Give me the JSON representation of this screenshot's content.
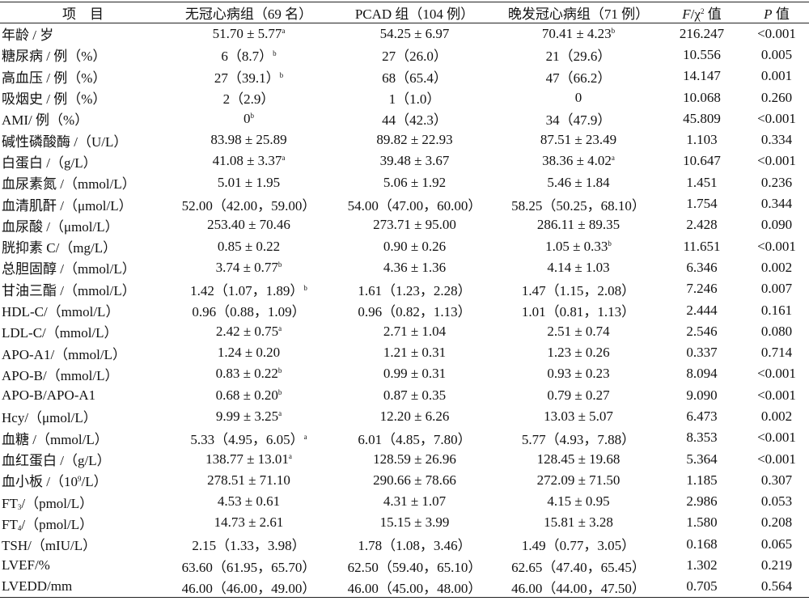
{
  "table": {
    "header": [
      "项　目",
      "无冠心病组（69 名）",
      "PCAD 组（104 例）",
      "晚发冠心病组（71 例）",
      [
        {
          "i": "F"
        },
        "/χ",
        {
          "sup": "2"
        },
        " 值"
      ],
      [
        {
          "i": "P"
        },
        " 值"
      ]
    ],
    "rows": [
      [
        "年龄 / 岁",
        [
          "51.70 ± 5.77",
          {
            "sup": "a"
          }
        ],
        "54.25 ± 6.97",
        [
          "70.41 ± 4.23",
          {
            "sup": "b"
          }
        ],
        "216.247",
        "<0.001"
      ],
      [
        "糖尿病 / 例（%）",
        [
          "6（8.7）",
          {
            "sup": "b"
          }
        ],
        "27（26.0）",
        "21（29.6）",
        "10.556",
        "0.005"
      ],
      [
        "高血压 / 例（%）",
        [
          "27（39.1）",
          {
            "sup": "b"
          }
        ],
        "68（65.4）",
        "47（66.2）",
        "14.147",
        "0.001"
      ],
      [
        "吸烟史 / 例（%）",
        "2（2.9）",
        "1（1.0）",
        "0",
        "10.068",
        "0.260"
      ],
      [
        "AMI/ 例（%）",
        [
          "0",
          {
            "sup": "b"
          }
        ],
        "44（42.3）",
        "34（47.9）",
        "45.809",
        "<0.001"
      ],
      [
        "碱性磷酸酶 /（U/L）",
        "83.98 ± 25.89",
        "89.82 ± 22.93",
        "87.51 ± 23.49",
        "1.103",
        "0.334"
      ],
      [
        "白蛋白 /（g/L）",
        [
          "41.08 ± 3.37",
          {
            "sup": "a"
          }
        ],
        "39.48 ± 3.67",
        [
          "38.36 ± 4.02",
          {
            "sup": "a"
          }
        ],
        "10.647",
        "<0.001"
      ],
      [
        "血尿素氮 /（mmol/L）",
        "5.01 ± 1.95",
        "5.06 ± 1.92",
        "5.46 ± 1.84",
        "1.451",
        "0.236"
      ],
      [
        "血清肌酐 /（μmol/L）",
        "52.00（42.00，59.00）",
        "54.00（47.00，60.00）",
        "58.25（50.25，68.10）",
        "1.754",
        "0.344"
      ],
      [
        "血尿酸 /（μmol/L）",
        "253.40 ± 70.46",
        "273.71 ± 95.00",
        "286.11 ± 89.35",
        "2.428",
        "0.090"
      ],
      [
        "胱抑素 C/（mg/L）",
        "0.85 ± 0.22",
        "0.90 ± 0.26",
        [
          "1.05 ± 0.33",
          {
            "sup": "b"
          }
        ],
        "11.651",
        "<0.001"
      ],
      [
        "总胆固醇 /（mmol/L）",
        [
          "3.74 ± 0.77",
          {
            "sup": "b"
          }
        ],
        "4.36 ± 1.36",
        "4.14 ± 1.03",
        "6.346",
        "0.002"
      ],
      [
        "甘油三酯 /（mmol/L）",
        [
          "1.42（1.07，1.89）",
          {
            "sup": "b"
          }
        ],
        "1.61（1.23，2.28）",
        "1.47（1.15，2.08）",
        "7.246",
        "0.007"
      ],
      [
        "HDL-C/（mmol/L）",
        "0.96（0.88，1.09）",
        "0.96（0.82，1.13）",
        "1.01（0.81，1.13）",
        "2.444",
        "0.161"
      ],
      [
        "LDL-C/（mmol/L）",
        [
          "2.42 ± 0.75",
          {
            "sup": "a"
          }
        ],
        "2.71 ± 1.04",
        "2.51 ± 0.74",
        "2.546",
        "0.080"
      ],
      [
        "APO-A1/（mmol/L）",
        "1.24 ± 0.20",
        "1.21 ± 0.31",
        "1.23 ± 0.26",
        "0.337",
        "0.714"
      ],
      [
        "APO-B/（mmol/L）",
        [
          "0.83 ± 0.22",
          {
            "sup": "b"
          }
        ],
        "0.99 ± 0.31",
        "0.93 ± 0.23",
        "8.094",
        "<0.001"
      ],
      [
        "APO-B/APO-A1",
        [
          "0.68 ± 0.20",
          {
            "sup": "b"
          }
        ],
        "0.87 ± 0.35",
        "0.79 ± 0.27",
        "9.090",
        "<0.001"
      ],
      [
        "Hcy/（μmol/L）",
        [
          "9.99 ± 3.25",
          {
            "sup": "a"
          }
        ],
        "12.20 ± 6.26",
        "13.03 ± 5.07",
        "6.473",
        "0.002"
      ],
      [
        "血糖 /（mmol/L）",
        [
          "5.33（4.95，6.05）",
          {
            "sup": "a"
          }
        ],
        "6.01（4.85，7.80）",
        "5.77（4.93，7.88）",
        "8.353",
        "<0.001"
      ],
      [
        "血红蛋白 /（g/L）",
        [
          "138.77 ± 13.01",
          {
            "sup": "a"
          }
        ],
        "128.59 ± 26.96",
        "128.45 ± 19.68",
        "5.364",
        "<0.001"
      ],
      [
        [
          "血小板 /（10",
          {
            "sup": "9"
          },
          "/L）"
        ],
        "278.51 ± 71.10",
        "290.66 ± 78.66",
        "272.09 ± 71.50",
        "1.185",
        "0.307"
      ],
      [
        [
          "FT",
          {
            "sub": "3"
          },
          "/（pmol/L）"
        ],
        "4.53 ± 0.61",
        "4.31 ± 1.07",
        "4.15 ± 0.95",
        "2.986",
        "0.053"
      ],
      [
        [
          "FT",
          {
            "sub": "4"
          },
          "/（pmol/L）"
        ],
        "14.73 ± 2.61",
        "15.15 ± 3.99",
        "15.81 ± 3.28",
        "1.580",
        "0.208"
      ],
      [
        "TSH/（mIU/L）",
        "2.15（1.33，3.98）",
        "1.78（1.08，3.46）",
        "1.49（0.77，3.05）",
        "0.168",
        "0.065"
      ],
      [
        "LVEF/%",
        "63.60（61.95，65.70）",
        "62.50（59.40，65.10）",
        "62.65（47.40，65.45）",
        "1.302",
        "0.219"
      ],
      [
        "LVEDD/mm",
        "46.00（46.00，49.00）",
        "46.00（45.00，48.00）",
        "46.00（44.00，47.50）",
        "0.705",
        "0.564"
      ]
    ]
  }
}
